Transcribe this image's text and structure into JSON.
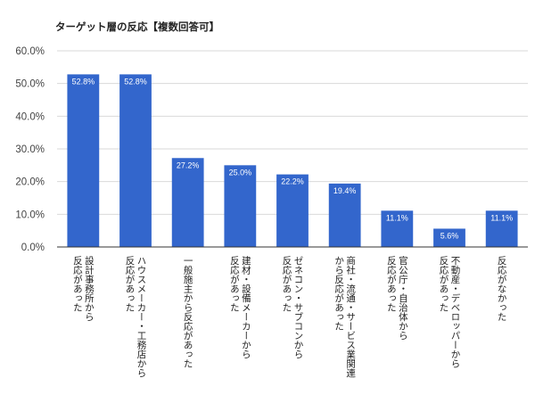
{
  "chart_data": {
    "type": "bar",
    "title": "ターゲット層の反応【複数回答可】",
    "xlabel": "",
    "ylabel": "",
    "ylim": [
      0,
      60
    ],
    "yticks": [
      "0.0%",
      "10.0%",
      "20.0%",
      "30.0%",
      "40.0%",
      "50.0%",
      "60.0%"
    ],
    "grid": true,
    "legend": "none",
    "bar_color": "#3366cc",
    "categories": [
      [
        "設計事務所から",
        "反応があった"
      ],
      [
        "ハウスメーカー・工務店から",
        "反応があった"
      ],
      [
        "一般施主から反応があった"
      ],
      [
        "建材・設備メーカーから",
        "反応があった"
      ],
      [
        "ゼネコン・サブコンから",
        "反応があった"
      ],
      [
        "商社・流通・サービス業関連",
        "から反応があった"
      ],
      [
        "官公庁・自治体から",
        "反応があった"
      ],
      [
        "不動産・デベロッパーから",
        "反応があった"
      ],
      [
        "反応がなかった"
      ]
    ],
    "values": [
      52.8,
      52.8,
      27.2,
      25.0,
      22.2,
      19.4,
      11.1,
      5.6,
      11.1
    ],
    "value_labels": [
      "52.8%",
      "52.8%",
      "27.2%",
      "25.0%",
      "22.2%",
      "19.4%",
      "11.1%",
      "5.6%",
      "11.1%"
    ]
  }
}
